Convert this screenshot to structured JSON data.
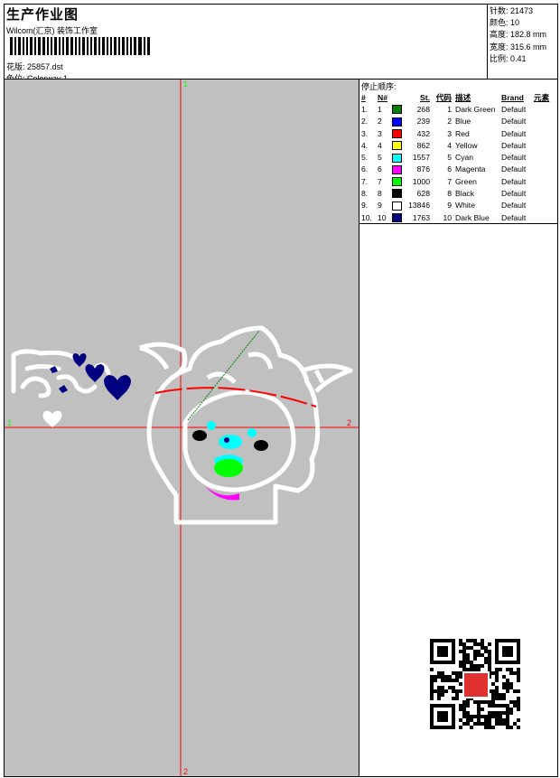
{
  "header": {
    "title": "生产作业图",
    "company": "Wilcom(汇京) 装饰工作室",
    "design_file_label": "花版:",
    "design_file": "25857.dst",
    "colorway_label": "色位:",
    "colorway": "Colorway 1"
  },
  "stats": [
    {
      "label": "针数:",
      "value": "21473"
    },
    {
      "label": "颜色:",
      "value": "10"
    },
    {
      "label": "高度:",
      "value": "182.8 mm"
    },
    {
      "label": "宽度:",
      "value": "315.6 mm"
    },
    {
      "label": "比例:",
      "value": "0.41"
    }
  ],
  "design": {
    "axis_top": "1",
    "axis_left": "1",
    "axis_right": "2",
    "axis_bottom": "2",
    "axis_top_color": "#00ff00",
    "axis_right_color": "#ff0000",
    "crosshair_color": "#ff0000",
    "background": "#c0c0c0"
  },
  "stop_sequence": {
    "title": "停止顺序:",
    "columns": [
      "#",
      "N#",
      "",
      "St.",
      "代码",
      "描述",
      "Brand",
      "元素"
    ],
    "rows": [
      {
        "idx": "1.",
        "n": "1",
        "color": "#008000",
        "st": "268",
        "code": "1",
        "desc": "Dark Green",
        "brand": "Default"
      },
      {
        "idx": "2.",
        "n": "2",
        "color": "#0000ff",
        "st": "239",
        "code": "2",
        "desc": "Blue",
        "brand": "Default"
      },
      {
        "idx": "3.",
        "n": "3",
        "color": "#ff0000",
        "st": "432",
        "code": "3",
        "desc": "Red",
        "brand": "Default"
      },
      {
        "idx": "4.",
        "n": "4",
        "color": "#ffff00",
        "st": "862",
        "code": "4",
        "desc": "Yellow",
        "brand": "Default"
      },
      {
        "idx": "5.",
        "n": "5",
        "color": "#00ffff",
        "st": "1557",
        "code": "5",
        "desc": "Cyan",
        "brand": "Default"
      },
      {
        "idx": "6.",
        "n": "6",
        "color": "#ff00ff",
        "st": "876",
        "code": "6",
        "desc": "Magenta",
        "brand": "Default"
      },
      {
        "idx": "7.",
        "n": "7",
        "color": "#00ff00",
        "st": "1000",
        "code": "7",
        "desc": "Green",
        "brand": "Default"
      },
      {
        "idx": "8.",
        "n": "8",
        "color": "#000000",
        "st": "628",
        "code": "8",
        "desc": "Black",
        "brand": "Default"
      },
      {
        "idx": "9.",
        "n": "9",
        "color": "#ffffff",
        "st": "13846",
        "code": "9",
        "desc": "White",
        "brand": "Default"
      },
      {
        "idx": "10.",
        "n": "10",
        "color": "#000080",
        "st": "1763",
        "code": "10",
        "desc": "Dark Blue",
        "brand": "Default"
      }
    ]
  },
  "qr": {
    "stamp_text": "以图"
  }
}
